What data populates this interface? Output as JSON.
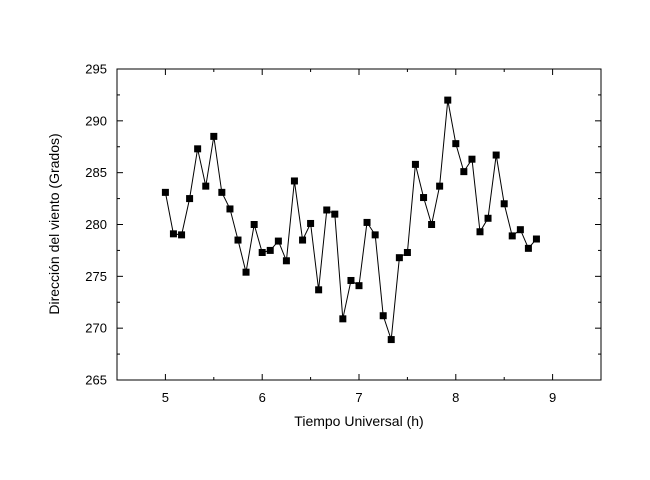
{
  "chart_data": {
    "type": "line",
    "title": "",
    "xlabel": "Tiempo Universal (h)",
    "ylabel": "Dirección del viento (Grados)",
    "xlim": [
      4.5,
      9.5
    ],
    "ylim": [
      265,
      295
    ],
    "xticks": [
      5,
      6,
      7,
      8,
      9
    ],
    "yticks": [
      265,
      270,
      275,
      280,
      285,
      290,
      295
    ],
    "xtick_labels": [
      "5",
      "6",
      "7",
      "8",
      "9"
    ],
    "ytick_labels": [
      "265",
      "270",
      "275",
      "280",
      "285",
      "290",
      "295"
    ],
    "grid": false,
    "marker": "square",
    "line_color": "#000000",
    "marker_color": "#000000",
    "series": [
      {
        "x": [
          5.0,
          5.083,
          5.167,
          5.25,
          5.333,
          5.417,
          5.5,
          5.583,
          5.667,
          5.75,
          5.833,
          5.917,
          6.0,
          6.083,
          6.167,
          6.25,
          6.333,
          6.417,
          6.5,
          6.583,
          6.667,
          6.75,
          6.833,
          6.917,
          7.0,
          7.083,
          7.167,
          7.25,
          7.333,
          7.417,
          7.5,
          7.583,
          7.667,
          7.75,
          7.833,
          7.917,
          8.0,
          8.083,
          8.167,
          8.25,
          8.333,
          8.417,
          8.5,
          8.583,
          8.667,
          8.75,
          8.833
        ],
        "y": [
          283.1,
          279.1,
          279.0,
          282.5,
          287.3,
          283.7,
          288.5,
          283.1,
          281.5,
          278.5,
          275.4,
          280.0,
          277.3,
          277.5,
          278.4,
          276.5,
          284.2,
          278.5,
          280.1,
          273.7,
          281.4,
          281.0,
          270.9,
          274.6,
          274.1,
          280.2,
          279.0,
          271.2,
          268.9,
          276.8,
          277.3,
          285.8,
          282.6,
          280.0,
          283.7,
          292.0,
          287.8,
          285.1,
          286.3,
          279.3,
          280.6,
          286.7,
          282.0,
          278.9,
          279.5,
          277.7,
          278.6
        ]
      }
    ]
  }
}
